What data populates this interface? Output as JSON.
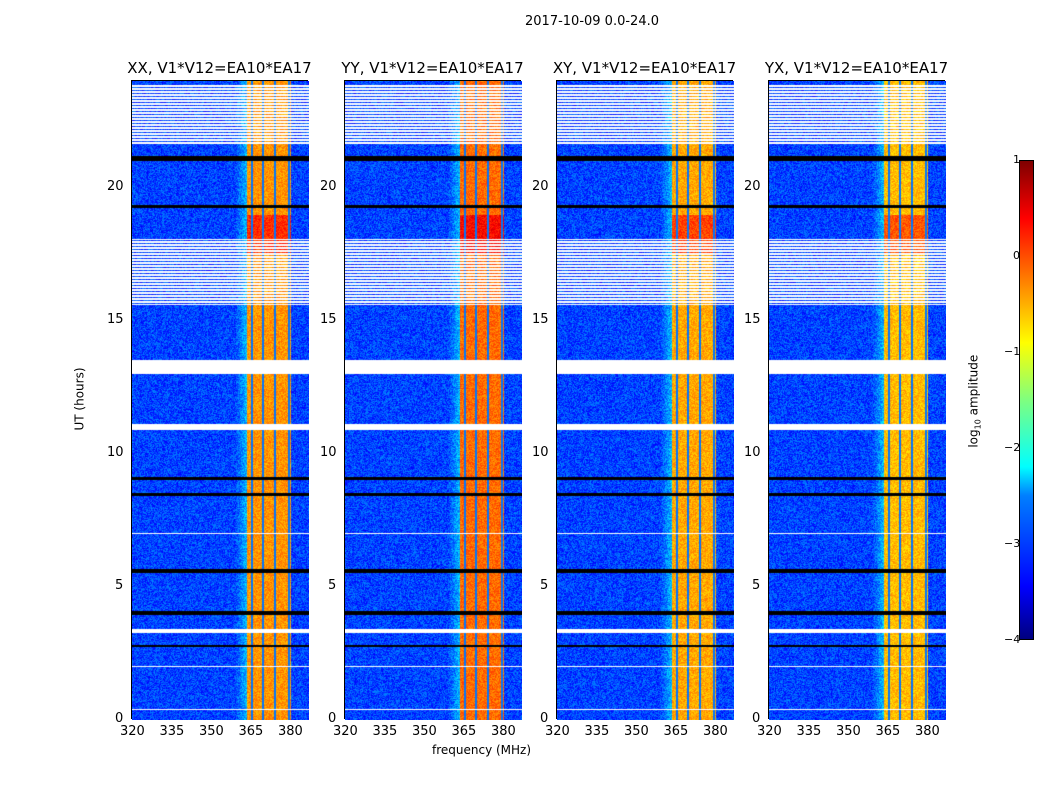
{
  "chart_data": {
    "type": "heatmap",
    "title": "2017-10-09 0.0-24.0",
    "xlabel": "frequency (MHz)",
    "ylabel": "UT (hours)",
    "xlim": [
      320,
      387
    ],
    "ylim": [
      0,
      24
    ],
    "xticks": [
      "320",
      "335",
      "350",
      "365",
      "380"
    ],
    "yticks": [
      "0",
      "5",
      "10",
      "15",
      "20"
    ],
    "panels": [
      {
        "title": "XX, V1*V12=EA10*EA17",
        "band_level": -0.6
      },
      {
        "title": "YY, V1*V12=EA10*EA17",
        "band_level": -0.4
      },
      {
        "title": "XY, V1*V12=EA10*EA17",
        "band_level": -0.7
      },
      {
        "title": "YX, V1*V12=EA10*EA17",
        "band_level": -0.8
      }
    ],
    "signal_band_mhz": [
      363.5,
      380
    ],
    "band_gaps_mhz": [
      365.5,
      369.5,
      374,
      379.5
    ],
    "background_level": -3.2,
    "flagged_hours": [
      [
        0.4,
        0.45
      ],
      [
        2.0,
        2.05
      ],
      [
        3.3,
        3.45
      ],
      [
        7.0,
        7.05
      ],
      [
        10.9,
        11.15
      ],
      [
        13.0,
        13.55
      ],
      [
        15.6,
        18.1
      ],
      [
        21.6,
        23.9
      ]
    ],
    "black_rows_hours": [
      [
        2.75,
        2.85
      ],
      [
        3.95,
        4.1
      ],
      [
        5.55,
        5.7
      ],
      [
        8.45,
        8.55
      ],
      [
        9.05,
        9.15
      ],
      [
        19.25,
        19.35
      ],
      [
        21.0,
        21.2
      ]
    ],
    "colorbar": {
      "label": "log10 amplitude",
      "label_main": "log",
      "label_sub": "10",
      "label_rest": " amplitude",
      "range": [
        -4,
        1
      ],
      "ticks": [
        "1",
        "0",
        "−1",
        "−2",
        "−3",
        "−4"
      ]
    }
  }
}
